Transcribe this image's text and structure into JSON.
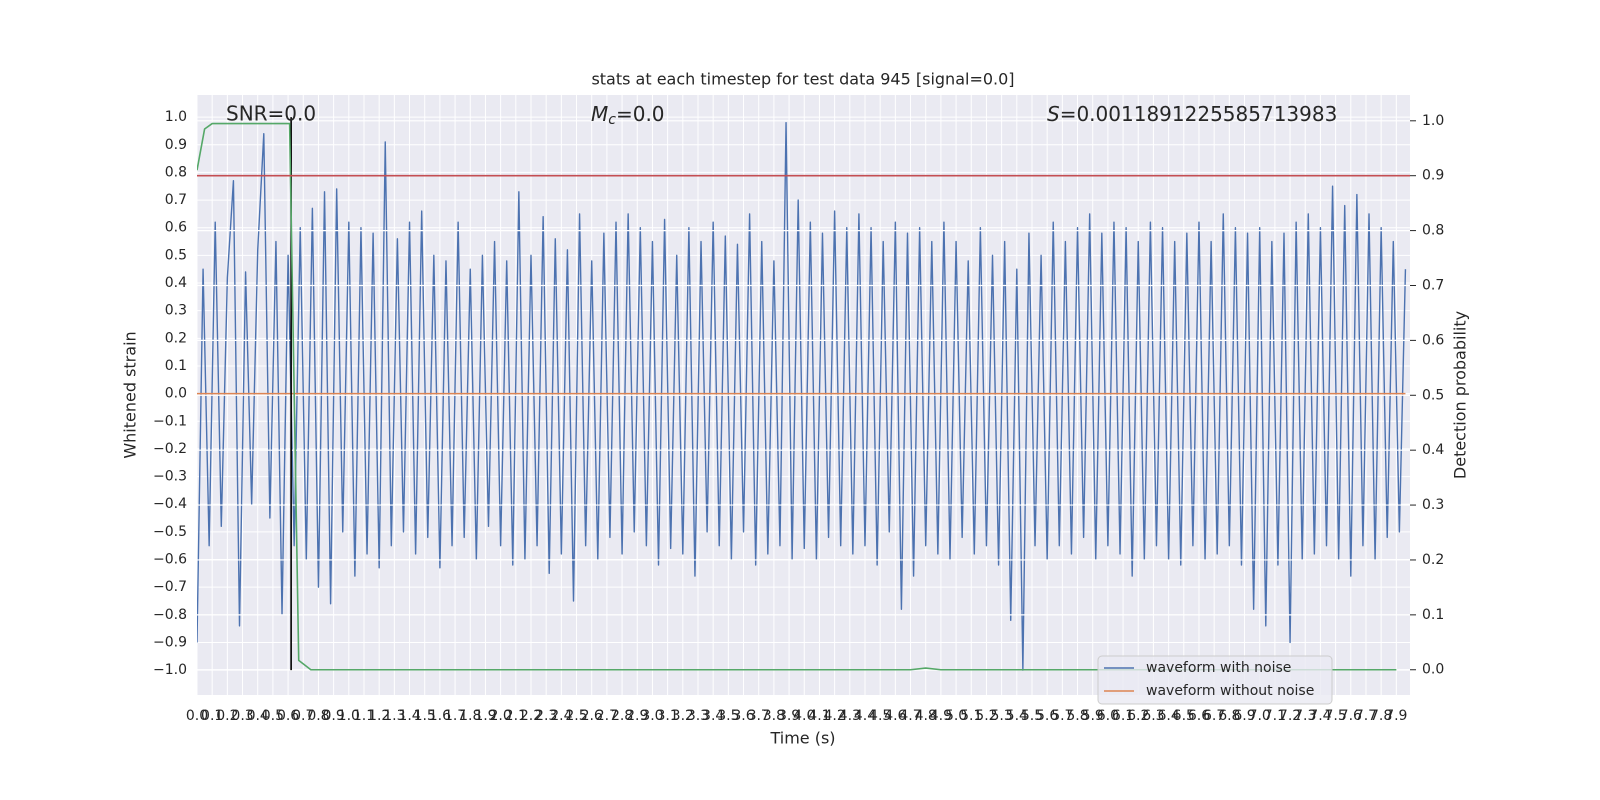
{
  "chart_data": {
    "type": "line",
    "title": "stats at each timestep for test data 945 [signal=0.0]",
    "xlabel": "Time (s)",
    "ylabel": "Whitened strain",
    "y2label": "Detection probability",
    "annotations": [
      {
        "text": "SNR=0.0"
      },
      {
        "symbol": "M",
        "subscript": "c",
        "text": "=0.0"
      },
      {
        "symbol": "S",
        "text": "=0.0011891225585713983"
      }
    ],
    "xlim": [
      0,
      7.99
    ],
    "ylim": [
      -1.09,
      1.08
    ],
    "y2lim": [
      -0.046,
      1.047
    ],
    "grid": true,
    "background": "#eaeaf2",
    "legend": "lower right",
    "xticks": [
      {
        "value": 0,
        "label": "0.0"
      },
      0.1,
      0.2,
      0.3,
      0.4,
      0.5,
      0.6,
      0.7,
      0.8,
      0.9,
      {
        "value": 1,
        "label": "1.0"
      },
      1.1,
      1.2,
      1.3,
      1.4,
      1.5,
      1.6,
      1.7,
      1.8,
      1.9,
      {
        "value": 2,
        "label": "2.0"
      },
      2.1,
      2.2,
      2.3,
      2.4,
      2.5,
      2.6,
      2.7,
      2.8,
      2.9,
      {
        "value": 3,
        "label": "3.0"
      },
      3.1,
      3.2,
      3.3,
      3.4,
      3.5,
      3.6,
      3.7,
      3.8,
      3.9,
      {
        "value": 4,
        "label": "4.0"
      },
      4.1,
      4.2,
      4.3,
      4.4,
      4.5,
      4.6,
      4.7,
      4.8,
      4.9,
      {
        "value": 5,
        "label": "5.0"
      },
      5.1,
      5.2,
      5.3,
      5.4,
      5.5,
      5.6,
      5.7,
      5.8,
      5.9,
      {
        "value": 6,
        "label": "6.0"
      },
      6.1,
      6.2,
      6.3,
      6.4,
      6.5,
      6.6,
      6.7,
      6.8,
      6.9,
      {
        "value": 7,
        "label": "7.0"
      },
      7.1,
      7.2,
      7.3,
      7.4,
      7.5,
      7.6,
      7.7,
      7.8,
      7.9
    ],
    "yticks": [
      {
        "value": 1,
        "label": "1.0"
      },
      0.9,
      0.8,
      0.7,
      0.6,
      0.5,
      0.4,
      0.3,
      0.2,
      0.1,
      {
        "value": 0,
        "label": "0.0"
      },
      {
        "value": -0.1,
        "label": "−0.1"
      },
      {
        "value": -0.2,
        "label": "−0.2"
      },
      {
        "value": -0.3,
        "label": "−0.3"
      },
      {
        "value": -0.4,
        "label": "−0.4"
      },
      {
        "value": -0.5,
        "label": "−0.5"
      },
      {
        "value": -0.6,
        "label": "−0.6"
      },
      {
        "value": -0.7,
        "label": "−0.7"
      },
      {
        "value": -0.8,
        "label": "−0.8"
      },
      {
        "value": -0.9,
        "label": "−0.9"
      },
      {
        "value": -1,
        "label": "−1.0"
      }
    ],
    "y2ticks": [
      {
        "value": 0,
        "label": "0.0"
      },
      0.1,
      0.2,
      0.3,
      0.4,
      0.5,
      0.6,
      0.7,
      0.8,
      0.9,
      {
        "value": 1,
        "label": "1.0"
      }
    ],
    "series": [
      {
        "name": "waveform with noise",
        "color": "#4c72b0",
        "axis": "y",
        "x": [
          0,
          0.04,
          0.08,
          0.12,
          0.16,
          0.2,
          0.24,
          0.28,
          0.32,
          0.36,
          0.4,
          0.44,
          0.48,
          0.52,
          0.56,
          0.6,
          0.64,
          0.68,
          0.72,
          0.76,
          0.8,
          0.84,
          0.88,
          0.92,
          0.96,
          1,
          1.04,
          1.08,
          1.12,
          1.16,
          1.2,
          1.24,
          1.28,
          1.32,
          1.36,
          1.4,
          1.44,
          1.48,
          1.52,
          1.56,
          1.6,
          1.64,
          1.68,
          1.72,
          1.76,
          1.8,
          1.84,
          1.88,
          1.92,
          1.96,
          2,
          2.04,
          2.08,
          2.12,
          2.16,
          2.2,
          2.24,
          2.28,
          2.32,
          2.36,
          2.4,
          2.44,
          2.48,
          2.52,
          2.56,
          2.6,
          2.64,
          2.68,
          2.72,
          2.76,
          2.8,
          2.84,
          2.88,
          2.92,
          2.96,
          3,
          3.04,
          3.08,
          3.12,
          3.16,
          3.2,
          3.24,
          3.28,
          3.32,
          3.36,
          3.4,
          3.44,
          3.48,
          3.52,
          3.56,
          3.6,
          3.64,
          3.68,
          3.72,
          3.76,
          3.8,
          3.84,
          3.88,
          3.92,
          3.96,
          4,
          4.04,
          4.08,
          4.12,
          4.16,
          4.2,
          4.24,
          4.28,
          4.32,
          4.36,
          4.4,
          4.44,
          4.48,
          4.52,
          4.56,
          4.6,
          4.64,
          4.68,
          4.72,
          4.76,
          4.8,
          4.84,
          4.88,
          4.92,
          4.96,
          5,
          5.04,
          5.08,
          5.12,
          5.16,
          5.2,
          5.24,
          5.28,
          5.32,
          5.36,
          5.4,
          5.44,
          5.48,
          5.52,
          5.56,
          5.6,
          5.64,
          5.68,
          5.72,
          5.76,
          5.8,
          5.84,
          5.88,
          5.92,
          5.96,
          6,
          6.04,
          6.08,
          6.12,
          6.16,
          6.2,
          6.24,
          6.28,
          6.32,
          6.36,
          6.4,
          6.44,
          6.48,
          6.52,
          6.56,
          6.6,
          6.64,
          6.68,
          6.72,
          6.76,
          6.8,
          6.84,
          6.88,
          6.92,
          6.96,
          7,
          7.04,
          7.08,
          7.12,
          7.16,
          7.2,
          7.24,
          7.28,
          7.32,
          7.36,
          7.4,
          7.44,
          7.48,
          7.52,
          7.56,
          7.6,
          7.64,
          7.68,
          7.72,
          7.76,
          7.8,
          7.84,
          7.88,
          7.92,
          7.96
        ],
        "values": [
          -0.9,
          0.45,
          -0.55,
          0.62,
          -0.48,
          0.42,
          0.77,
          -0.84,
          0.44,
          -0.4,
          0.52,
          0.94,
          -0.45,
          0.55,
          -0.8,
          0.5,
          -0.55,
          0.6,
          -0.6,
          0.67,
          -0.7,
          0.73,
          -0.76,
          0.74,
          -0.5,
          0.62,
          -0.66,
          0.6,
          -0.58,
          0.58,
          -0.63,
          0.91,
          -0.55,
          0.56,
          -0.5,
          0.62,
          -0.58,
          0.66,
          -0.52,
          0.5,
          -0.63,
          0.48,
          -0.55,
          0.62,
          -0.52,
          0.45,
          -0.6,
          0.5,
          -0.48,
          0.55,
          -0.55,
          0.48,
          -0.62,
          0.73,
          -0.6,
          0.5,
          -0.55,
          0.64,
          -0.65,
          0.56,
          -0.58,
          0.52,
          -0.75,
          0.65,
          -0.55,
          0.48,
          -0.6,
          0.58,
          -0.52,
          0.62,
          -0.58,
          0.65,
          -0.5,
          0.6,
          -0.55,
          0.55,
          -0.62,
          0.63,
          -0.56,
          0.5,
          -0.58,
          0.6,
          -0.66,
          0.55,
          -0.5,
          0.62,
          -0.55,
          0.57,
          -0.6,
          0.54,
          -0.5,
          0.65,
          -0.62,
          0.55,
          -0.58,
          0.48,
          -0.55,
          0.98,
          -0.6,
          0.7,
          -0.56,
          0.62,
          -0.6,
          0.58,
          -0.52,
          0.66,
          -0.55,
          0.6,
          -0.58,
          0.65,
          -0.55,
          0.6,
          -0.62,
          0.55,
          -0.5,
          0.62,
          -0.78,
          0.58,
          -0.66,
          0.6,
          -0.55,
          0.55,
          -0.58,
          0.62,
          -0.6,
          0.55,
          -0.52,
          0.48,
          -0.58,
          0.6,
          -0.55,
          0.5,
          -0.62,
          0.55,
          -0.82,
          0.45,
          -1,
          0.58,
          -0.55,
          0.5,
          -0.6,
          0.62,
          -0.55,
          0.55,
          -0.58,
          0.6,
          -0.52,
          0.65,
          -0.6,
          0.58,
          -0.55,
          0.62,
          -0.58,
          0.6,
          -0.66,
          0.55,
          -0.6,
          0.62,
          -0.55,
          0.6,
          -0.6,
          0.55,
          -0.62,
          0.58,
          -0.55,
          0.62,
          -0.6,
          0.55,
          -0.58,
          0.65,
          -0.55,
          0.6,
          -0.62,
          0.58,
          -0.78,
          0.6,
          -0.84,
          0.55,
          -0.62,
          0.58,
          -0.9,
          0.62,
          -0.6,
          0.65,
          -0.58,
          0.6,
          -0.55,
          0.75,
          -0.6,
          0.68,
          -0.66,
          0.72,
          -0.55,
          0.65,
          -0.6,
          0.6,
          -0.52,
          0.55,
          -0.5,
          0.45
        ]
      },
      {
        "name": "waveform without noise",
        "color": "#dd8452",
        "axis": "y",
        "x": [
          0,
          7.96
        ],
        "values": [
          0,
          0
        ]
      },
      {
        "color": "#55a868",
        "axis": "y2",
        "x": [
          0,
          0.05,
          0.1,
          0.61,
          0.67,
          0.75,
          4.7,
          4.8,
          4.9,
          7.9
        ],
        "values": [
          0.91,
          0.985,
          0.995,
          0.995,
          0.017,
          0,
          0,
          0.003,
          0,
          0
        ]
      }
    ],
    "hline": {
      "value": 0.9,
      "axis": "y2",
      "color": "#c44e52"
    },
    "vline": {
      "x": 0.62,
      "ymin": -1,
      "ymax": 1,
      "color": "#000000"
    }
  }
}
